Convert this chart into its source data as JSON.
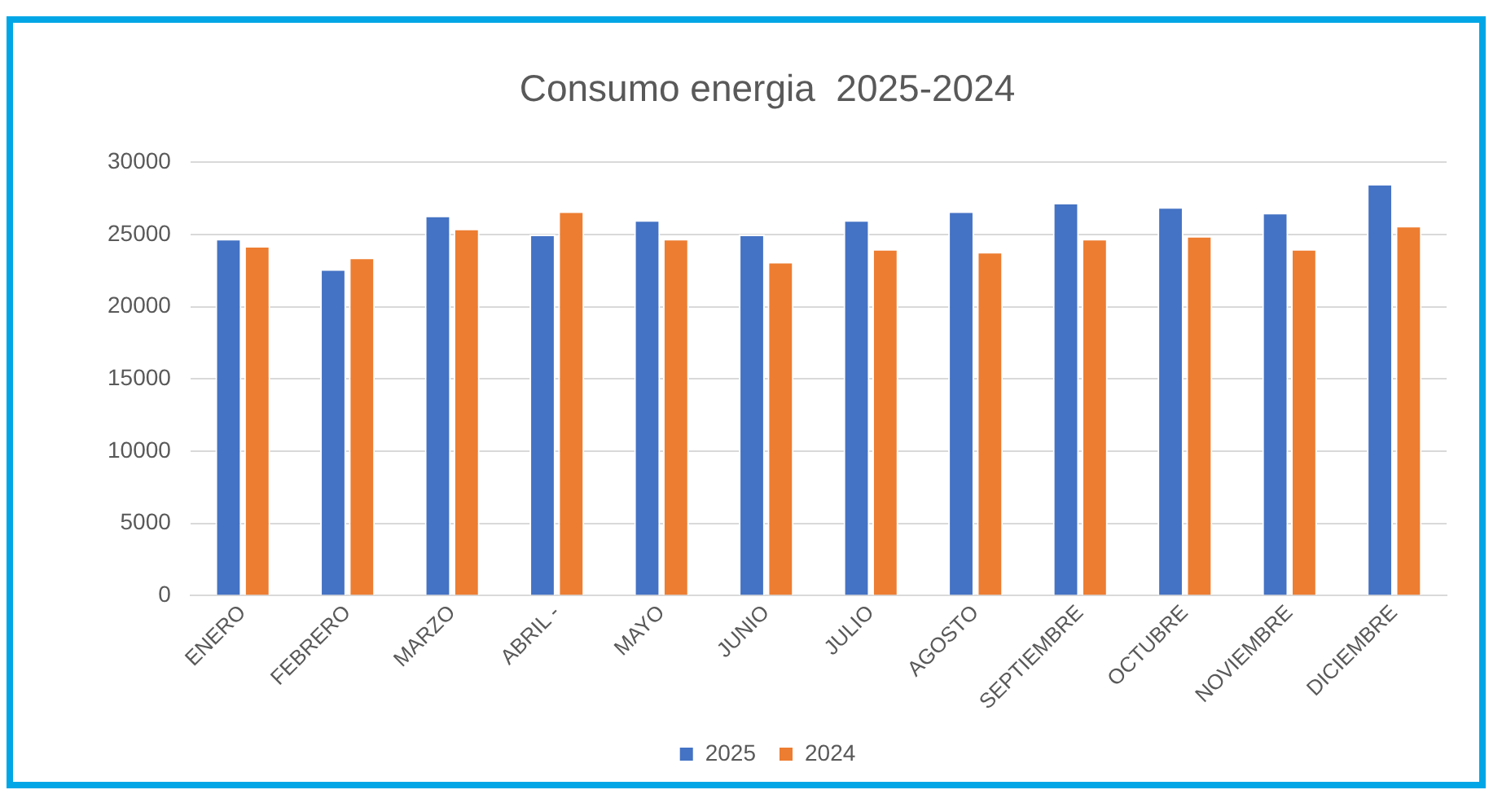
{
  "chart_data": {
    "type": "bar",
    "title": "Consumo energia  2025-2024",
    "categories": [
      "ENERO",
      "FEBRERO",
      "MARZO",
      "ABRIL -",
      "MAYO",
      "JUNIO",
      "JULIO",
      "AGOSTO",
      "SEPTIEMBRE",
      "OCTUBRE",
      "NOVIEMBRE",
      "DICIEMBRE"
    ],
    "series": [
      {
        "name": "2025",
        "color": "#4472c4",
        "values": [
          24700,
          22600,
          26300,
          25000,
          26000,
          25000,
          26000,
          26600,
          27200,
          26900,
          26500,
          28500
        ]
      },
      {
        "name": "2024",
        "color": "#ed7d31",
        "values": [
          24200,
          23400,
          25400,
          26600,
          24700,
          23100,
          24000,
          23800,
          24700,
          24900,
          24000,
          25600
        ]
      }
    ],
    "ylim": [
      0,
      30000
    ],
    "yticks": [
      0,
      5000,
      10000,
      15000,
      20000,
      25000,
      30000
    ],
    "grid": "y",
    "legend": "bottom"
  }
}
